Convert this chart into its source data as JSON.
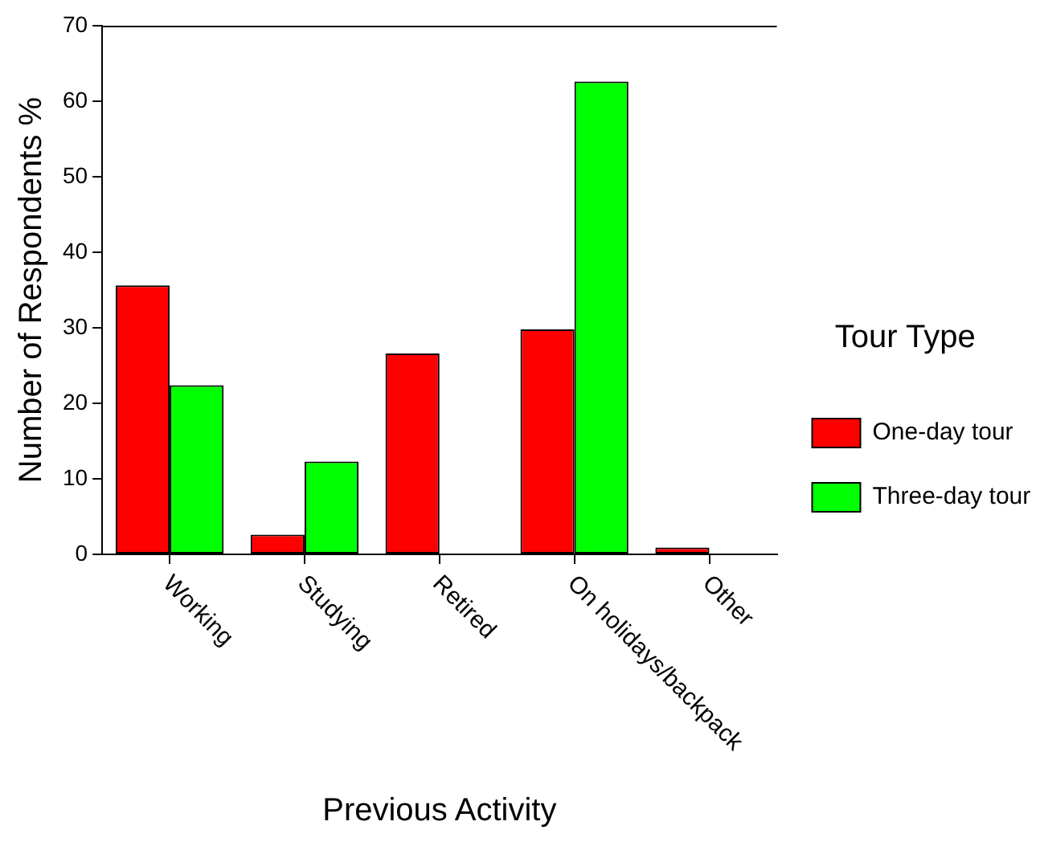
{
  "chart_data": {
    "type": "bar",
    "xlabel": "Previous Activity",
    "ylabel": "Number of Respondents %",
    "legend_title": "Tour Type",
    "categories": [
      "Working",
      "Studying",
      "Retired",
      "On holidays/backpack",
      "Other"
    ],
    "series": [
      {
        "name": "One-day tour",
        "color": "#ff0000",
        "values": [
          35.6,
          2.6,
          26.6,
          29.8,
          0.9
        ]
      },
      {
        "name": "Three-day tour",
        "color": "#00ff00",
        "values": [
          22.4,
          12.3,
          0,
          62.6,
          0
        ]
      }
    ],
    "ylim": [
      0,
      70
    ],
    "yticks": [
      0,
      10,
      20,
      30,
      40,
      50,
      60,
      70
    ],
    "grid": false,
    "legend": "right"
  }
}
